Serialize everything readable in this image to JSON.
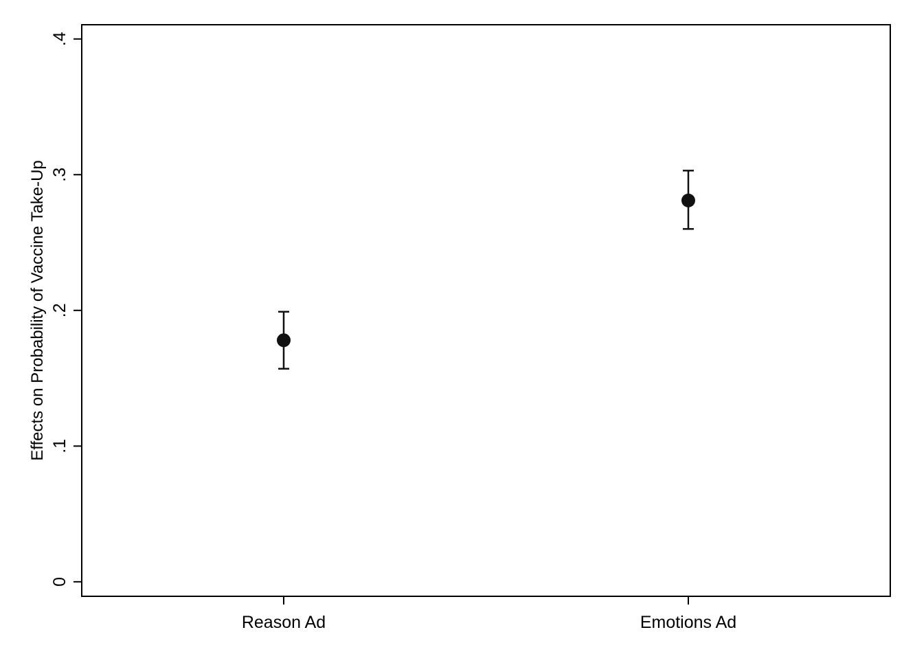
{
  "chart_data": {
    "type": "scatter",
    "title": "",
    "xlabel": "",
    "ylabel": "Effects on Probability of Vaccine Take-Up",
    "categories": [
      "Reason Ad",
      "Emotions Ad"
    ],
    "y_ticks": [
      0,
      0.1,
      0.2,
      0.3,
      0.4
    ],
    "y_tick_labels": [
      "0",
      ".1",
      ".2",
      ".3",
      ".4"
    ],
    "ylim": [
      -0.0107,
      0.4105
    ],
    "grid": false,
    "legend": "none",
    "series": [
      {
        "values": [
          0.178,
          0.281
        ],
        "ci_lower": [
          0.157,
          0.26
        ],
        "ci_upper": [
          0.199,
          0.303
        ]
      }
    ],
    "colors": {
      "marker": "#111111",
      "axis": "#000000",
      "background": "#ffffff"
    }
  }
}
